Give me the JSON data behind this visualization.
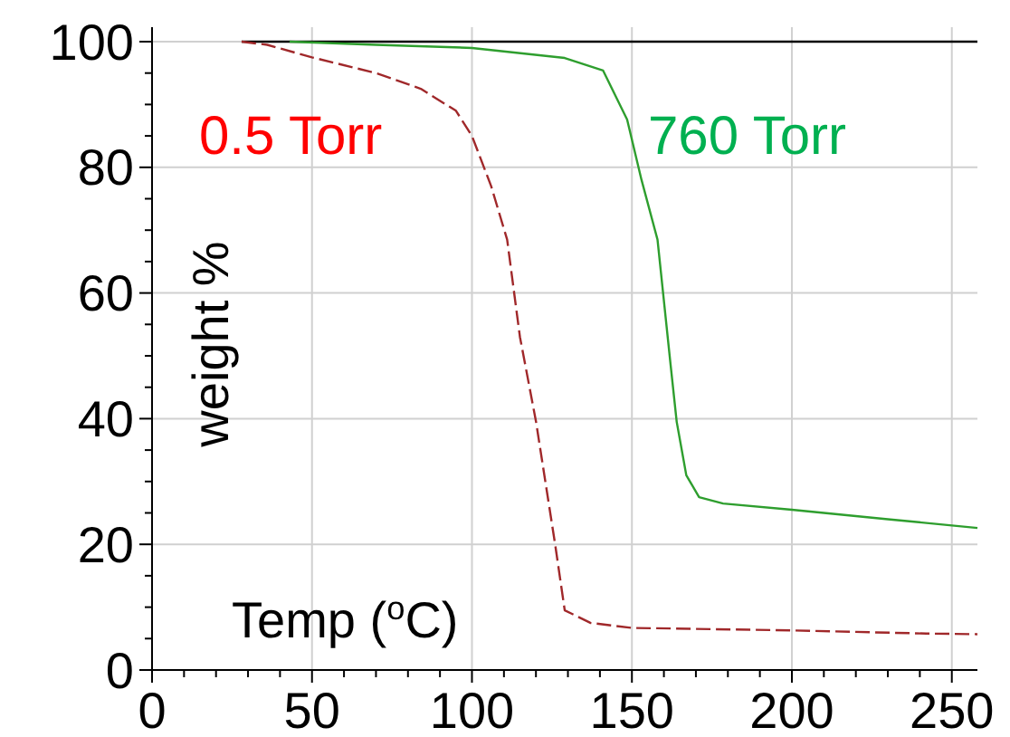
{
  "chart_data": {
    "type": "line",
    "xlabel": "Temp ($^{o}$C)",
    "ylabel": "weight %",
    "xlim": [
      0,
      258
    ],
    "ylim": [
      0,
      100
    ],
    "xticks": [
      0,
      {
        "value": 10,
        "label": null
      },
      {
        "value": 20,
        "label": null
      },
      {
        "value": 30,
        "label": null
      },
      {
        "value": 40,
        "label": null
      },
      50,
      {
        "value": 60,
        "label": null
      },
      {
        "value": 70,
        "label": null
      },
      {
        "value": 80,
        "label": null
      },
      {
        "value": 90,
        "label": null
      },
      100,
      {
        "value": 110,
        "label": null
      },
      {
        "value": 120,
        "label": null
      },
      {
        "value": 130,
        "label": null
      },
      {
        "value": 140,
        "label": null
      },
      150,
      {
        "value": 160,
        "label": null
      },
      {
        "value": 170,
        "label": null
      },
      {
        "value": 180,
        "label": null
      },
      {
        "value": 190,
        "label": null
      },
      200,
      {
        "value": 210,
        "label": null
      },
      {
        "value": 220,
        "label": null
      },
      {
        "value": 230,
        "label": null
      },
      {
        "value": 240,
        "label": null
      },
      250
    ],
    "yticks": [
      0,
      {
        "value": 5,
        "label": null
      },
      {
        "value": 10,
        "label": null
      },
      {
        "value": 15,
        "label": null
      },
      20,
      {
        "value": 25,
        "label": null
      },
      {
        "value": 30,
        "label": null
      },
      {
        "value": 35,
        "label": null
      },
      40,
      {
        "value": 45,
        "label": null
      },
      {
        "value": 50,
        "label": null
      },
      {
        "value": 55,
        "label": null
      },
      60,
      {
        "value": 65,
        "label": null
      },
      {
        "value": 70,
        "label": null
      },
      {
        "value": 75,
        "label": null
      },
      80,
      {
        "value": 85,
        "label": null
      },
      {
        "value": 90,
        "label": null
      },
      {
        "value": 95,
        "label": null
      },
      100
    ],
    "grid": true,
    "marker": "none",
    "series": [
      {
        "x": [
          28,
          258
        ],
        "values": [
          100,
          100
        ],
        "color": "#000000",
        "line_style": "solid"
      },
      {
        "name": "0.5 Torr",
        "color": "#a0282a",
        "line_style": "dashed",
        "x": [
          28,
          36,
          50,
          70,
          84,
          95,
          100,
          106,
          111,
          115,
          120,
          126,
          129,
          131,
          137,
          150,
          175,
          200,
          242,
          258
        ],
        "values": [
          100,
          99.5,
          97.5,
          95,
          92.5,
          89,
          85,
          77,
          68.5,
          53,
          39.6,
          20,
          9.5,
          9,
          7.5,
          6.7,
          6.5,
          6.3,
          5.8,
          5.7
        ]
      },
      {
        "name": "760 Torr",
        "color": "#2e9e2e",
        "line_style": "solid",
        "x": [
          43,
          70,
          100,
          129,
          141,
          148.5,
          153,
          158,
          162,
          164,
          167,
          171,
          178.5,
          200,
          230,
          258
        ],
        "values": [
          100,
          99.5,
          99,
          97.4,
          95.4,
          87.6,
          78,
          68.5,
          49,
          39.5,
          31,
          27.5,
          26.5,
          25.5,
          24,
          22.6
        ]
      }
    ]
  }
}
